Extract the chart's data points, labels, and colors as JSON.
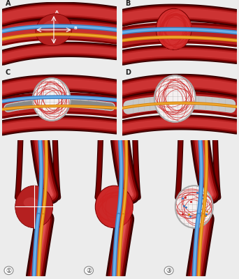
{
  "bg_light": "#ECECEC",
  "panel_bg": "#F2F2F2",
  "dark_red": "#7B0000",
  "mid_red": "#B52020",
  "bright_red": "#CC3333",
  "light_red": "#E05050",
  "very_dark_red": "#3A0000",
  "tube_blue": "#3A7FC1",
  "tube_blue_light": "#6AAEE8",
  "tube_orange": "#D4820A",
  "tube_orange_light": "#F0A830",
  "tube_yellow": "#F0D060",
  "aneurysm_dark": "#8B1010",
  "coil_red": "#CC2222",
  "coil_pink": "#E88888",
  "stent_gray": "#C8C8C8",
  "stent_dark": "#888888",
  "white": "#FFFFFF",
  "off_white": "#F5F0F0",
  "border": "#AAAAAA",
  "label_dark": "#222222",
  "panels_top": [
    "A",
    "B",
    "C",
    "D"
  ],
  "panels_bot": [
    "①",
    "②",
    "③"
  ]
}
